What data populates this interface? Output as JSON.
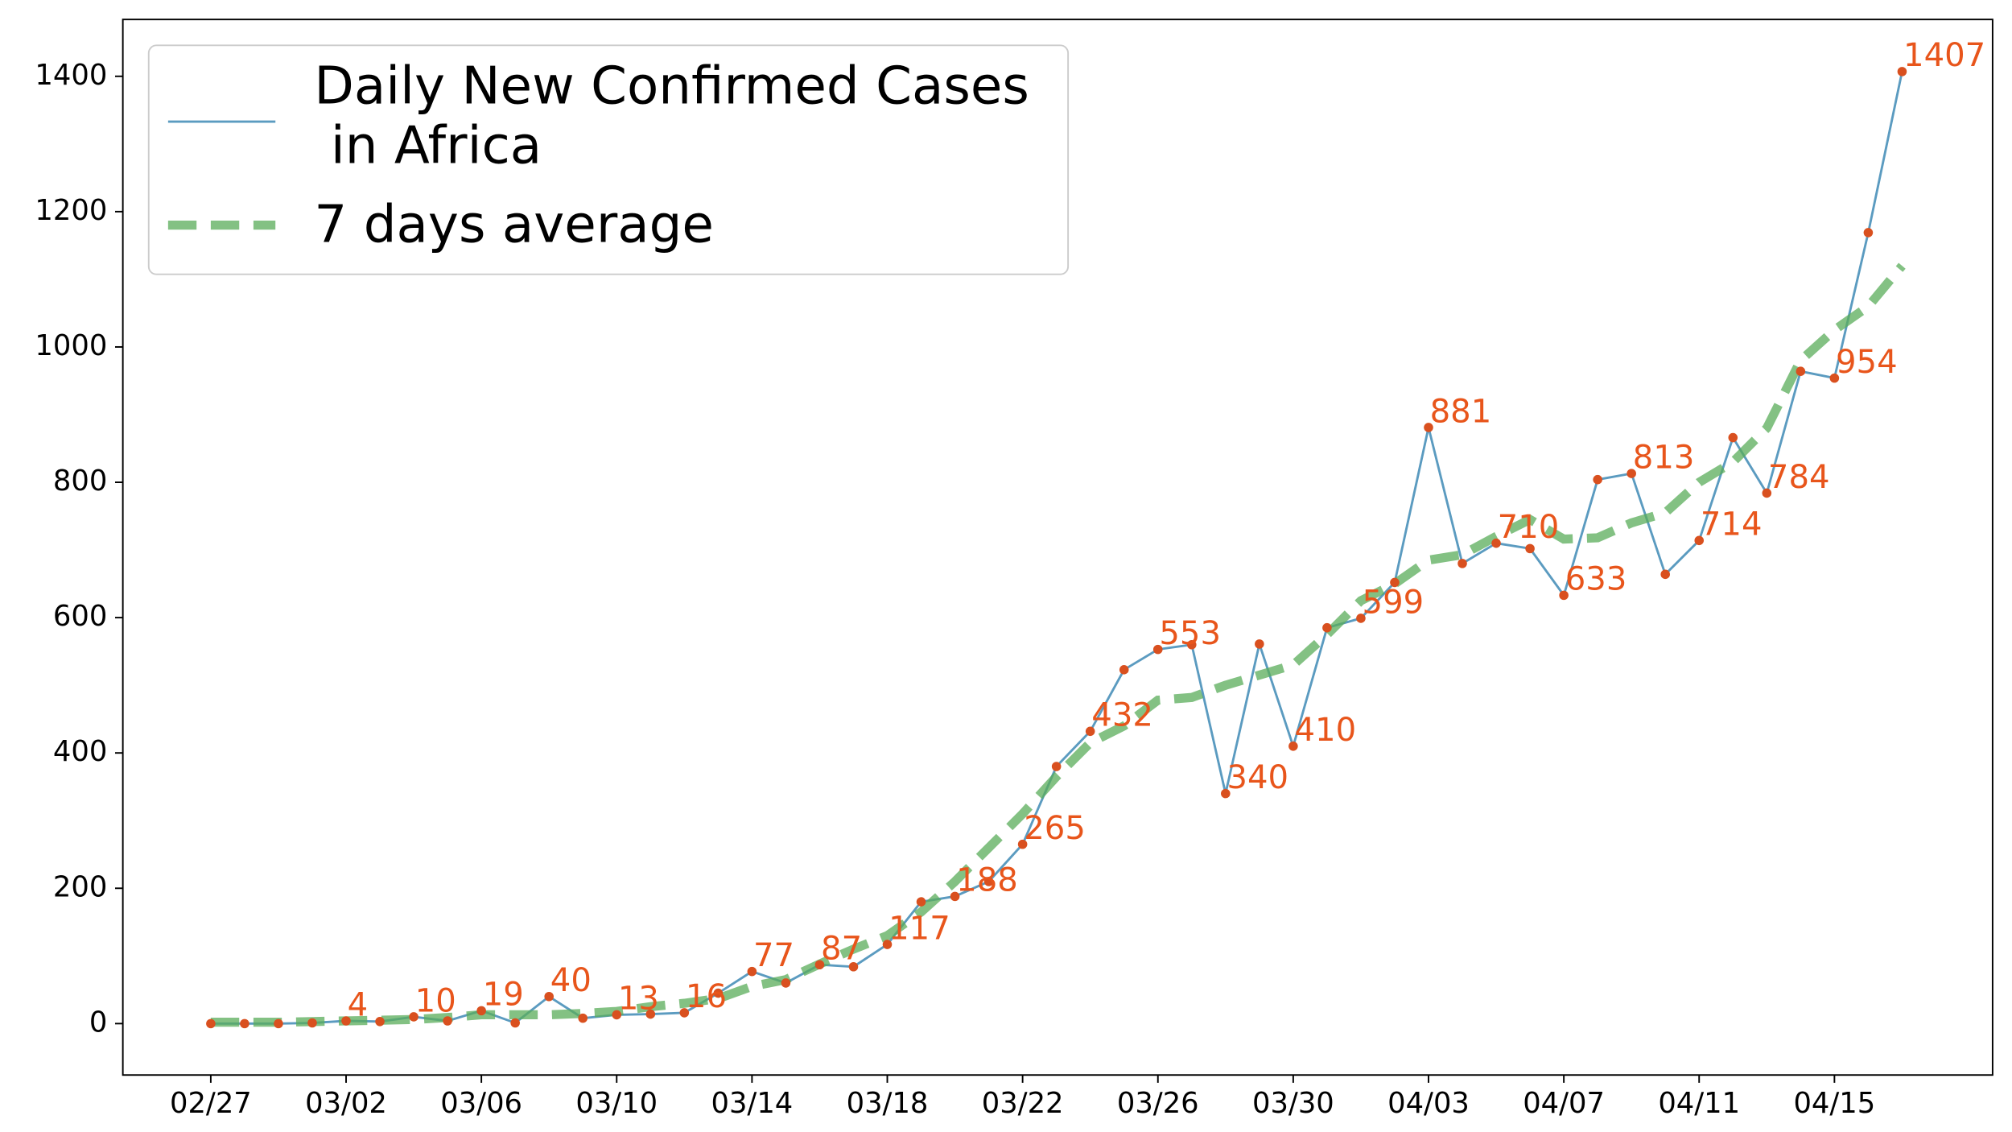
{
  "chart_data": {
    "type": "line",
    "x": [
      "02/27",
      null,
      null,
      null,
      "03/02",
      null,
      null,
      null,
      "03/06",
      null,
      null,
      null,
      "03/10",
      null,
      null,
      null,
      "03/14",
      null,
      null,
      null,
      "03/18",
      null,
      null,
      null,
      "03/22",
      null,
      null,
      null,
      "03/26",
      null,
      null,
      null,
      "03/30",
      null,
      null,
      null,
      "04/03",
      null,
      null,
      null,
      "04/07",
      null,
      null,
      null,
      "04/11",
      null,
      null,
      null,
      "04/15",
      null,
      null
    ],
    "series": [
      {
        "name": "Daily New Confirmed Cases\n in Africa",
        "color": "#5b9bc0",
        "marker_color": "#d9501f",
        "label_color": "#e8551b",
        "values": [
          0,
          0,
          0,
          1,
          4,
          3,
          10,
          4,
          19,
          1,
          40,
          8,
          13,
          14,
          16,
          45,
          77,
          60,
          87,
          84,
          117,
          180,
          188,
          210,
          265,
          380,
          432,
          523,
          553,
          560,
          340,
          561,
          410,
          585,
          599,
          652,
          881,
          680,
          710,
          702,
          633,
          804,
          813,
          664,
          714,
          866,
          784,
          964,
          954,
          1169,
          1407
        ],
        "value_labels": [
          null,
          null,
          null,
          null,
          "4",
          null,
          "10",
          null,
          "19",
          null,
          "40",
          null,
          "13",
          null,
          "16",
          null,
          "77",
          null,
          "87",
          null,
          "117",
          null,
          "188",
          null,
          "265",
          null,
          "432",
          null,
          "553",
          null,
          "340",
          null,
          "410",
          null,
          "599",
          null,
          "881",
          null,
          "710",
          null,
          "633",
          null,
          "813",
          null,
          "714",
          null,
          "784",
          null,
          "954",
          null,
          "1407"
        ]
      },
      {
        "name": "7 days average",
        "color": "#5aac5a",
        "dashed": true,
        "values": [
          2,
          2,
          2,
          3,
          4,
          5,
          6,
          9,
          13,
          13,
          13,
          15,
          18,
          25,
          30,
          37,
          55,
          65,
          88,
          110,
          130,
          165,
          210,
          260,
          310,
          365,
          415,
          440,
          478,
          482,
          500,
          515,
          530,
          575,
          625,
          650,
          685,
          693,
          720,
          745,
          716,
          718,
          740,
          755,
          800,
          830,
          880,
          980,
          1025,
          1060,
          1120
        ]
      }
    ],
    "ylim": [
      -76,
      1484
    ],
    "yticks": [
      0,
      200,
      400,
      600,
      800,
      1000,
      1200,
      1400
    ],
    "legend": "upper left"
  }
}
